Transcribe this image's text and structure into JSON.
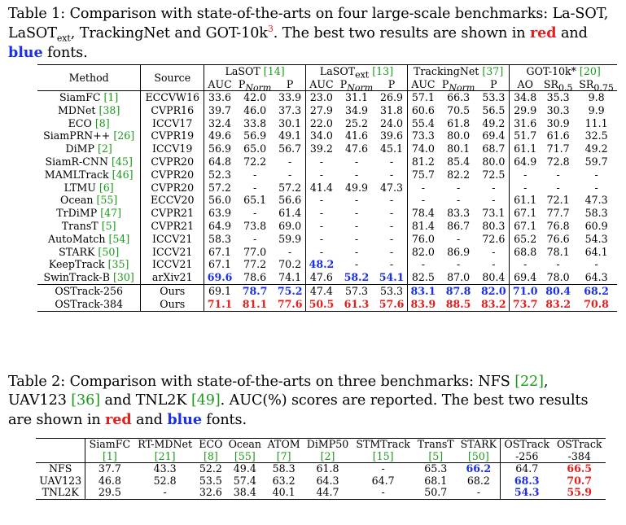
{
  "table1": {
    "caption_prefix": "Table 1: Comparison with state-of-the-arts on four large-scale benchmarks: La-SOT, LaSOT",
    "caption_sub": "ext",
    "caption_mid": ", TrackingNet and GOT-10k",
    "caption_sup": "3",
    "caption_mid2": ". The best two results are shown in ",
    "caption_red": "red",
    "caption_and": " and ",
    "caption_blue": "blue",
    "caption_end": " fonts.",
    "header": {
      "method": "Method",
      "source": "Source",
      "groups": [
        {
          "name": "LaSOT",
          "ref": "[14]"
        },
        {
          "name": "LaSOT",
          "sub": "ext",
          "ref": "[13]"
        },
        {
          "name": "TrackingNet",
          "ref": "[37]"
        },
        {
          "name": "GOT-10k*",
          "ref": "[20]"
        }
      ],
      "metrics": [
        "AUC",
        "P",
        "Norm",
        "P",
        "AUC",
        "P",
        "Norm",
        "P",
        "AUC",
        "P",
        "Norm",
        "P",
        "AO",
        "SR",
        "0.5",
        "SR",
        "0.75"
      ]
    },
    "rows": [
      {
        "method": "SiamFC",
        "ref": "[1]",
        "source": "ECCVW16",
        "vals": [
          "33.6",
          "42.0",
          "33.9",
          "23.0",
          "31.1",
          "26.9",
          "57.1",
          "66.3",
          "53.3",
          "34.8",
          "35.3",
          "9.8"
        ]
      },
      {
        "method": "MDNet",
        "ref": "[38]",
        "source": "CVPR16",
        "vals": [
          "39.7",
          "46.0",
          "37.3",
          "27.9",
          "34.9",
          "31.8",
          "60.6",
          "70.5",
          "56.5",
          "29.9",
          "30.3",
          "9.9"
        ]
      },
      {
        "method": "ECO",
        "ref": "[8]",
        "source": "ICCV17",
        "vals": [
          "32.4",
          "33.8",
          "30.1",
          "22.0",
          "25.2",
          "24.0",
          "55.4",
          "61.8",
          "49.2",
          "31.6",
          "30.9",
          "11.1"
        ]
      },
      {
        "method": "SiamPRN++",
        "ref": "[26]",
        "source": "CVPR19",
        "vals": [
          "49.6",
          "56.9",
          "49.1",
          "34.0",
          "41.6",
          "39.6",
          "73.3",
          "80.0",
          "69.4",
          "51.7",
          "61.6",
          "32.5"
        ]
      },
      {
        "method": "DiMP",
        "ref": "[2]",
        "source": "ICCV19",
        "vals": [
          "56.9",
          "65.0",
          "56.7",
          "39.2",
          "47.6",
          "45.1",
          "74.0",
          "80.1",
          "68.7",
          "61.1",
          "71.7",
          "49.2"
        ]
      },
      {
        "method": "SiamR-CNN",
        "ref": "[45]",
        "source": "CVPR20",
        "vals": [
          "64.8",
          "72.2",
          "-",
          "-",
          "-",
          "-",
          "81.2",
          "85.4",
          "80.0",
          "64.9",
          "72.8",
          "59.7"
        ]
      },
      {
        "method": "MAMLTrack",
        "ref": "[46]",
        "source": "CVPR20",
        "vals": [
          "52.3",
          "-",
          "-",
          "-",
          "-",
          "-",
          "75.7",
          "82.2",
          "72.5",
          "-",
          "-",
          "-"
        ]
      },
      {
        "method": "LTMU",
        "ref": "[6]",
        "source": "CVPR20",
        "vals": [
          "57.2",
          "-",
          "57.2",
          "41.4",
          "49.9",
          "47.3",
          "-",
          "-",
          "-",
          "-",
          "-",
          "-"
        ]
      },
      {
        "method": "Ocean",
        "ref": "[55]",
        "source": "ECCV20",
        "vals": [
          "56.0",
          "65.1",
          "56.6",
          "-",
          "-",
          "-",
          "-",
          "-",
          "-",
          "61.1",
          "72.1",
          "47.3"
        ]
      },
      {
        "method": "TrDiMP",
        "ref": "[47]",
        "source": "CVPR21",
        "vals": [
          "63.9",
          "-",
          "61.4",
          "-",
          "-",
          "-",
          "78.4",
          "83.3",
          "73.1",
          "67.1",
          "77.7",
          "58.3"
        ]
      },
      {
        "method": "TransT",
        "ref": "[5]",
        "source": "CVPR21",
        "vals": [
          "64.9",
          "73.8",
          "69.0",
          "-",
          "-",
          "-",
          "81.4",
          "86.7",
          "80.3",
          "67.1",
          "76.8",
          "60.9"
        ]
      },
      {
        "method": "AutoMatch",
        "ref": "[54]",
        "source": "ICCV21",
        "vals": [
          "58.3",
          "-",
          "59.9",
          "-",
          "-",
          "-",
          "76.0",
          "-",
          "72.6",
          "65.2",
          "76.6",
          "54.3"
        ]
      },
      {
        "method": "STARK",
        "ref": "[50]",
        "source": "ICCV21",
        "vals": [
          "67.1",
          "77.0",
          "-",
          "-",
          "-",
          "-",
          "82.0",
          "86.9",
          "-",
          "68.8",
          "78.1",
          "64.1"
        ]
      },
      {
        "method": "KeepTrack",
        "ref": "[35]",
        "source": "ICCV21",
        "vals": [
          "67.1",
          "77.2",
          "70.2",
          "48.2",
          "-",
          "-",
          "-",
          "-",
          "-",
          "-",
          "-",
          "-"
        ],
        "colors": [
          "",
          "",
          "",
          "b",
          "",
          "",
          "",
          "",
          "",
          "",
          "",
          ""
        ]
      },
      {
        "method": "SwinTrack-B",
        "ref": "[30]",
        "source": "arXiv21",
        "vals": [
          "69.6",
          "78.6",
          "74.1",
          "47.6",
          "58.2",
          "54.1",
          "82.5",
          "87.0",
          "80.4",
          "69.4",
          "78.0",
          "64.3"
        ],
        "colors": [
          "b",
          "",
          "",
          "",
          "b",
          "b",
          "",
          "",
          "",
          "",
          "",
          ""
        ]
      },
      {
        "method": "OSTrack-256",
        "ref": "",
        "source": "Ours",
        "vals": [
          "69.1",
          "78.7",
          "75.2",
          "47.4",
          "57.3",
          "53.3",
          "83.1",
          "87.8",
          "82.0",
          "71.0",
          "80.4",
          "68.2"
        ],
        "colors": [
          "",
          "b",
          "b",
          "",
          "",
          "",
          "b",
          "b",
          "b",
          "b",
          "b",
          "b"
        ]
      },
      {
        "method": "OSTrack-384",
        "ref": "",
        "source": "Ours",
        "vals": [
          "71.1",
          "81.1",
          "77.6",
          "50.5",
          "61.3",
          "57.6",
          "83.9",
          "88.5",
          "83.2",
          "73.7",
          "83.2",
          "70.8"
        ],
        "colors": [
          "r",
          "r",
          "r",
          "r",
          "r",
          "r",
          "r",
          "r",
          "r",
          "r",
          "r",
          "r"
        ]
      }
    ]
  },
  "table2": {
    "caption_prefix": "Table 2: Comparison with state-of-the-arts on three benchmarks: NFS ",
    "caption_ref1": "[22]",
    "caption_mid1": ", UAV123 ",
    "caption_ref2": "[36]",
    "caption_mid2": " and TNL2K ",
    "caption_ref3": "[49]",
    "caption_mid3": ". AUC(%) scores are reported. The best two results are shown in ",
    "caption_red": "red",
    "caption_and": " and ",
    "caption_blue": "blue",
    "caption_end": " fonts.",
    "columns": [
      {
        "name": "SiamFC",
        "ref": "[1]"
      },
      {
        "name": "RT-MDNet",
        "ref": "[21]"
      },
      {
        "name": "ECO",
        "ref": "[8]"
      },
      {
        "name": "Ocean",
        "ref": "[55]"
      },
      {
        "name": "ATOM",
        "ref": "[7]"
      },
      {
        "name": "DiMP50",
        "ref": "[2]"
      },
      {
        "name": "STMTrack",
        "ref": "[15]"
      },
      {
        "name": "TransT",
        "ref": "[5]"
      },
      {
        "name": "STARK",
        "ref": "[50]"
      },
      {
        "name": "OSTrack",
        "ref": "-256"
      },
      {
        "name": "OSTrack",
        "ref": "-384"
      }
    ],
    "rows": [
      {
        "name": "NFS",
        "vals": [
          "37.7",
          "43.3",
          "52.2",
          "49.4",
          "58.3",
          "61.8",
          "-",
          "65.3",
          "66.2",
          "64.7",
          "66.5"
        ],
        "colors": [
          "",
          "",
          "",
          "",
          "",
          "",
          "",
          "",
          "b",
          "",
          "r"
        ]
      },
      {
        "name": "UAV123",
        "vals": [
          "46.8",
          "52.8",
          "53.5",
          "57.4",
          "63.2",
          "64.3",
          "64.7",
          "68.1",
          "68.2",
          "68.3",
          "70.7"
        ],
        "colors": [
          "",
          "",
          "",
          "",
          "",
          "",
          "",
          "",
          "",
          "b",
          "r"
        ]
      },
      {
        "name": "TNL2K",
        "vals": [
          "29.5",
          "-",
          "32.6",
          "38.4",
          "40.1",
          "44.7",
          "-",
          "50.7",
          "-",
          "54.3",
          "55.9"
        ],
        "colors": [
          "",
          "",
          "",
          "",
          "",
          "",
          "",
          "",
          "",
          "b",
          "r"
        ]
      }
    ]
  }
}
